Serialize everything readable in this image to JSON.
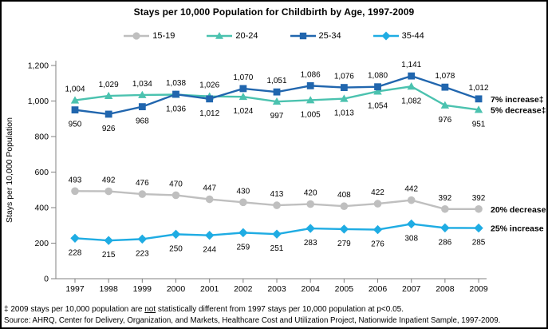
{
  "title": "Stays per 10,000 Population for Childbirth by Age, 1997-2009",
  "chart_data": {
    "type": "line",
    "title": "Stays per 10,000 Population for Childbirth by Age, 1997-2009",
    "xlabel": "",
    "ylabel": "Stays per 10,000 Population",
    "ylim": [
      0,
      1200
    ],
    "y_ticks": [
      0,
      200,
      400,
      600,
      800,
      1000,
      1200
    ],
    "grid": false,
    "legend_position": "top",
    "x": [
      "1997",
      "1998",
      "1999",
      "2000",
      "2001",
      "2002",
      "2003",
      "2004",
      "2005",
      "2006",
      "2007",
      "2008",
      "2009"
    ],
    "series": [
      {
        "name": "15-19",
        "marker": "circle",
        "color": "#BFBFBF",
        "values": [
          493,
          492,
          476,
          470,
          447,
          430,
          413,
          420,
          408,
          422,
          442,
          392,
          392
        ],
        "label_side": [
          "above",
          "above",
          "above",
          "above",
          "above",
          "above",
          "above",
          "above",
          "above",
          "above",
          "above",
          "above",
          "above"
        ],
        "annotation": "20% decrease"
      },
      {
        "name": "20-24",
        "marker": "triangle",
        "color": "#4BC2AF",
        "values": [
          1004,
          1029,
          1034,
          1036,
          1026,
          1024,
          997,
          1005,
          1013,
          1054,
          1082,
          976,
          951
        ],
        "label_side": [
          "above",
          "above",
          "above",
          "below",
          "above",
          "below",
          "below",
          "below",
          "below",
          "below",
          "below",
          "below",
          "below"
        ],
        "annotation": "5% decrease‡"
      },
      {
        "name": "25-34",
        "marker": "square",
        "color": "#2166AE",
        "values": [
          950,
          926,
          968,
          1038,
          1012,
          1070,
          1051,
          1086,
          1076,
          1080,
          1141,
          1078,
          1012
        ],
        "label_side": [
          "below",
          "below",
          "below",
          "above",
          "below",
          "above",
          "above",
          "above",
          "above",
          "above",
          "above",
          "above",
          "above"
        ],
        "annotation": "7% increase‡"
      },
      {
        "name": "35-44",
        "marker": "diamond",
        "color": "#1FACE3",
        "values": [
          228,
          215,
          223,
          250,
          244,
          259,
          251,
          283,
          279,
          276,
          308,
          286,
          285
        ],
        "label_side": [
          "below",
          "below",
          "below",
          "below",
          "below",
          "below",
          "below",
          "below",
          "below",
          "below",
          "below",
          "below",
          "below"
        ],
        "annotation": "25% increase"
      }
    ]
  },
  "footnotes": {
    "note_prefix": "‡ 2009 stays per 10,000 population are ",
    "note_underlined": "not",
    "note_suffix": " statistically different from 1997 stays per 10,000 population at p<0.05.",
    "source": "Source: AHRQ, Center for Delivery, Organization, and Markets, Healthcare Cost and Utilization Project, Nationwide Inpatient Sample, 1997-2009."
  }
}
